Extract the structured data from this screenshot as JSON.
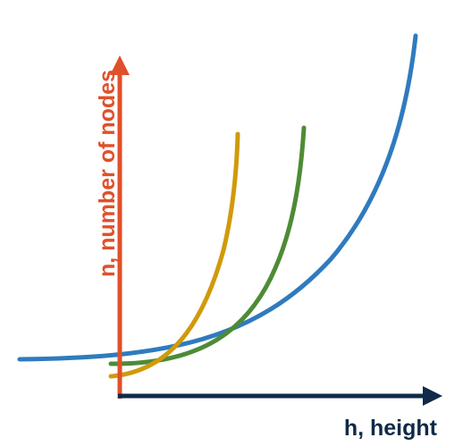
{
  "axes": {
    "y_label": "n, number of nodes",
    "x_label": "h, height",
    "y_color": "#E0502A",
    "x_color": "#0F2A4A"
  },
  "curves": [
    {
      "name_id": "blue-curve",
      "color": "#2F7BBE"
    },
    {
      "name_id": "green-curve",
      "color": "#4E8B36"
    },
    {
      "name_id": "gold-curve",
      "color": "#D09A0C"
    }
  ]
}
